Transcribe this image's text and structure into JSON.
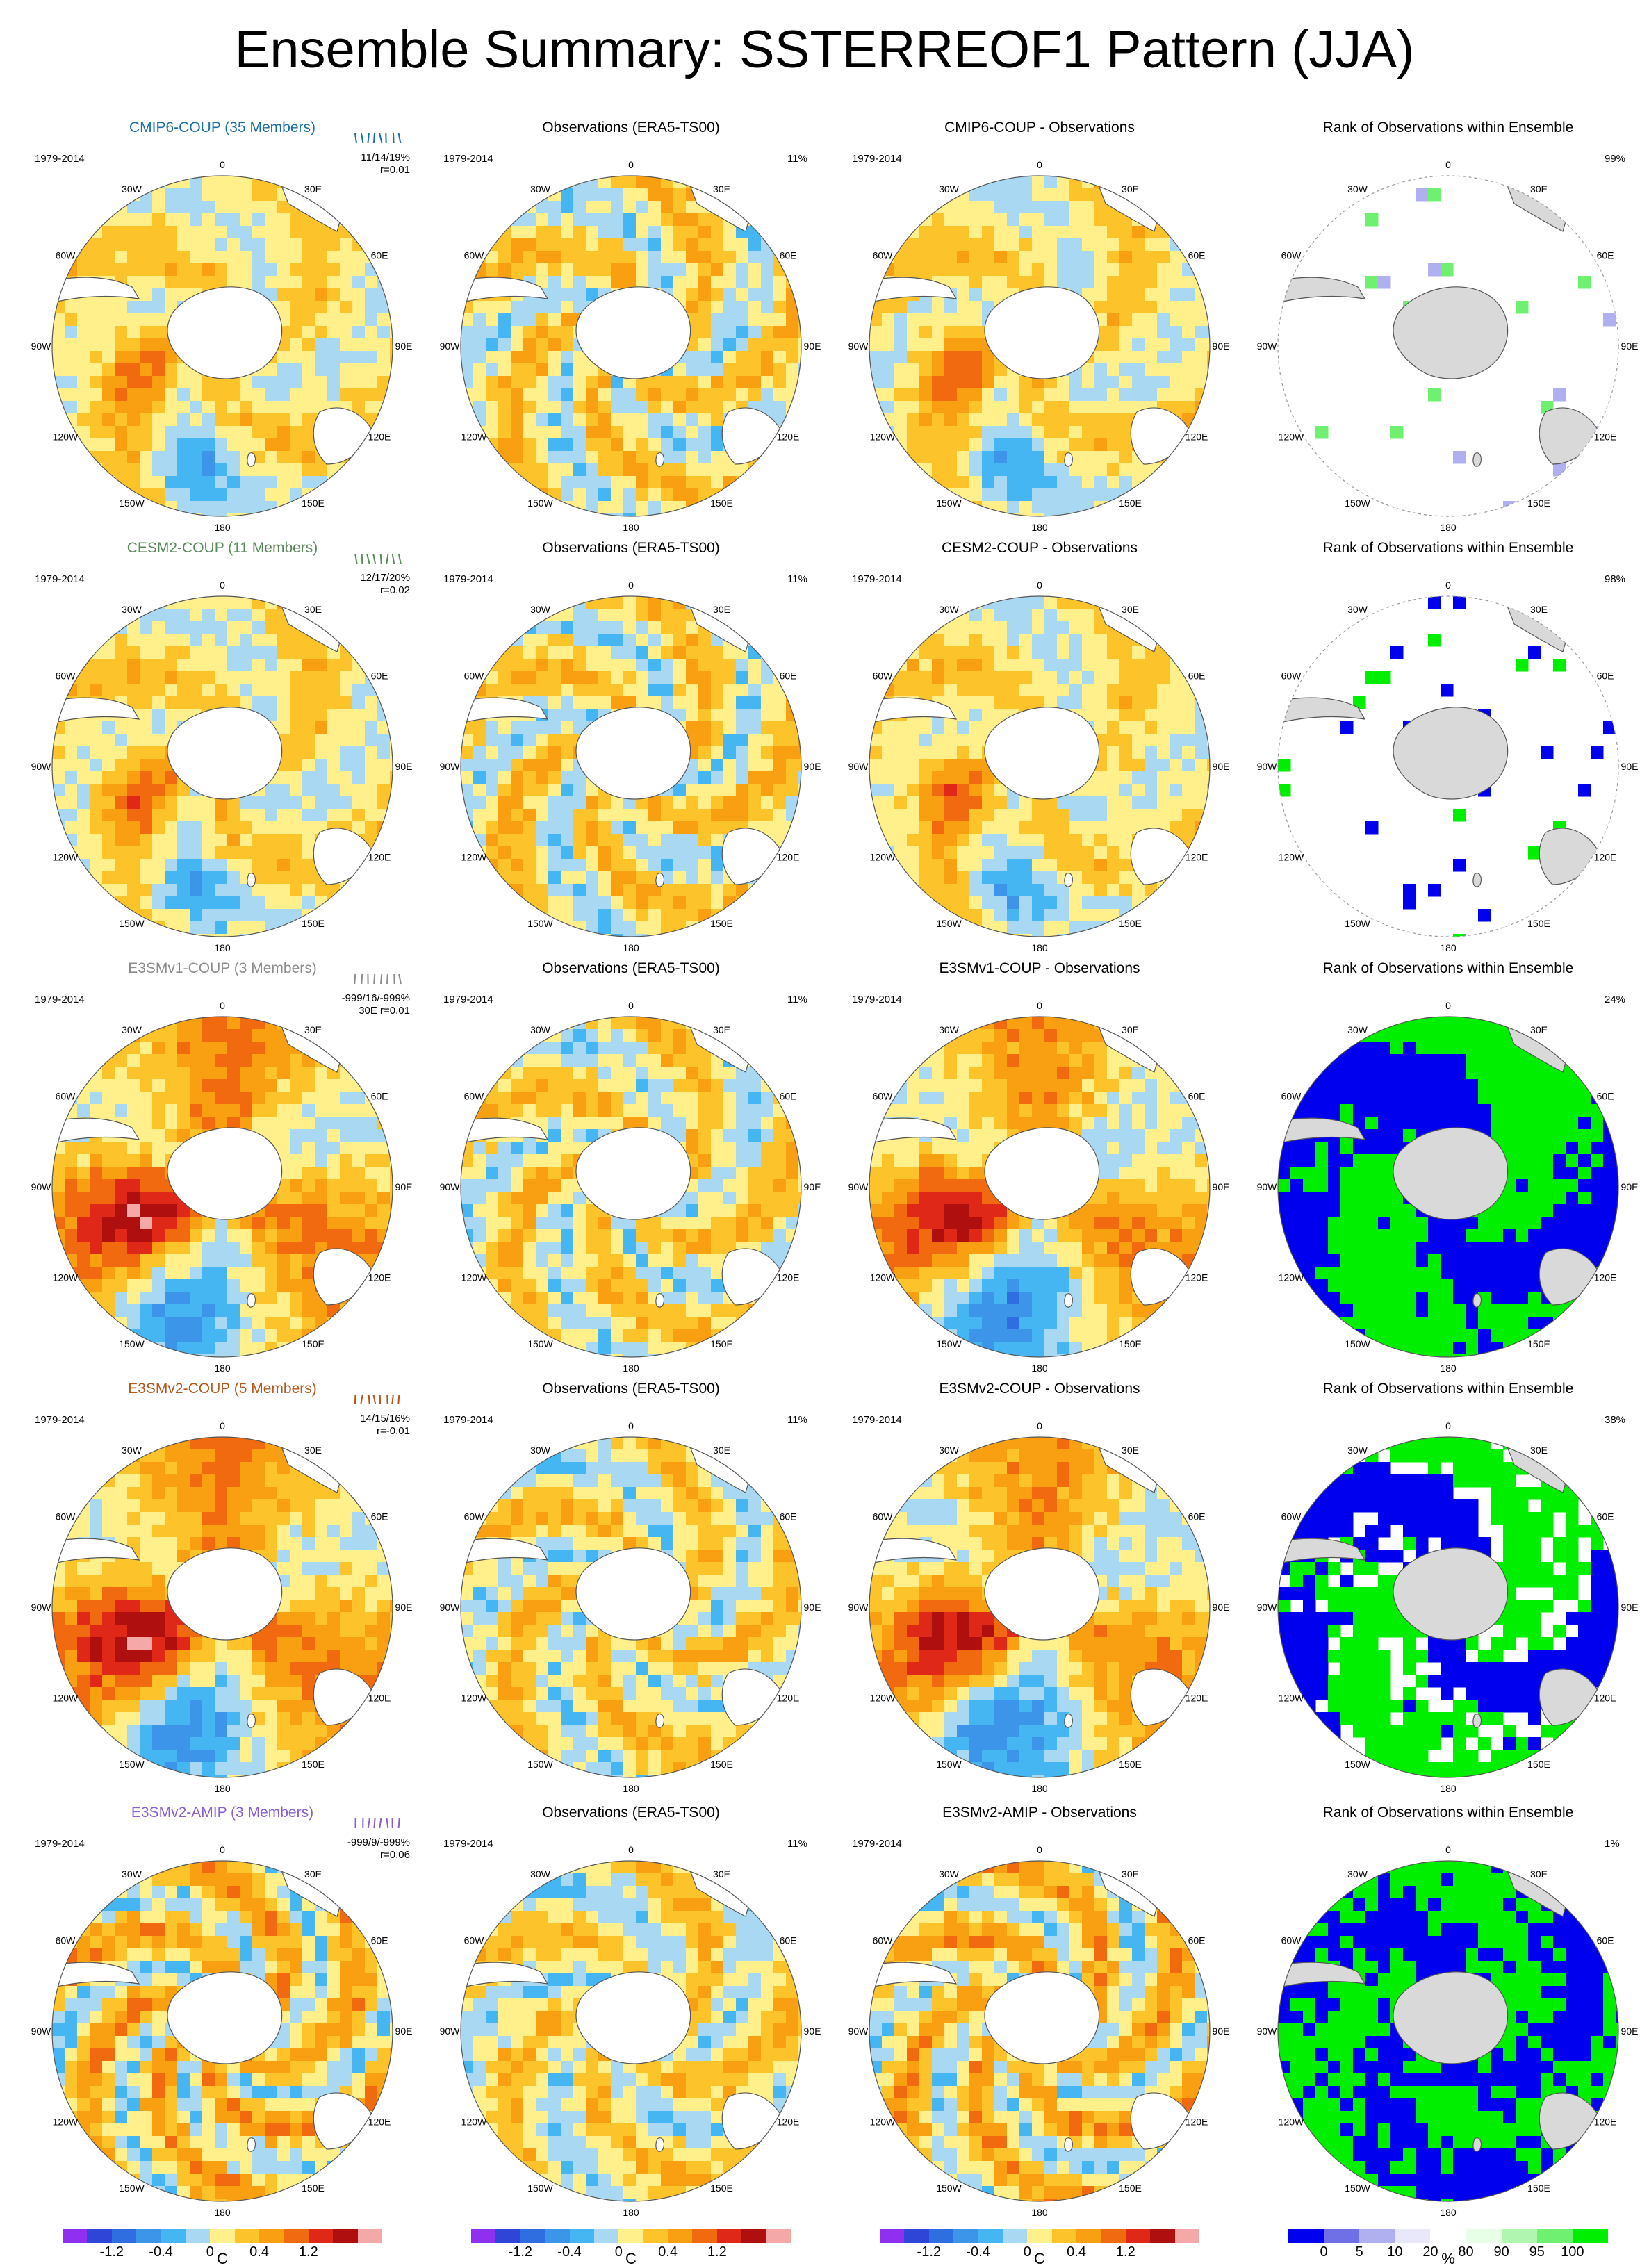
{
  "title": "Ensemble Summary: SSTERREOF1 Pattern (JJA)",
  "lon_labels": [
    "0",
    "30E",
    "60E",
    "90E",
    "120E",
    "150E",
    "180",
    "150W",
    "120W",
    "90W",
    "60W",
    "30W"
  ],
  "rows": [
    {
      "model": "CMIP6-COUP (35 Members)",
      "model_color": "#1a6fa3",
      "stats1": "11/14/19%",
      "stats2": "r=0.01",
      "obs_title": "Observations (ERA5-TS00)",
      "diff_title": "CMIP6-COUP - Observations",
      "rank_title": "Rank of Observations within Ensemble",
      "period": "1979-2014",
      "obs_pct": "11%",
      "rank_pct": "99%",
      "style": "cmip6"
    },
    {
      "model": "CESM2-COUP (11 Members)",
      "model_color": "#5a8a5a",
      "stats1": "12/17/20%",
      "stats2": "r=0.02",
      "obs_title": "Observations (ERA5-TS00)",
      "diff_title": "CESM2-COUP - Observations",
      "rank_title": "Rank of Observations within Ensemble",
      "period": "1979-2014",
      "obs_pct": "11%",
      "rank_pct": "98%",
      "style": "cesm2"
    },
    {
      "model": "E3SMv1-COUP (3 Members)",
      "model_color": "#8c8c8c",
      "stats1": "-999/16/-999%",
      "stats2": "30E r=0.01",
      "obs_title": "Observations (ERA5-TS00)",
      "diff_title": "E3SMv1-COUP - Observations",
      "rank_title": "Rank of Observations within Ensemble",
      "period": "1979-2014",
      "obs_pct": "11%",
      "rank_pct": "24%",
      "style": "e3smv1"
    },
    {
      "model": "E3SMv2-COUP (5 Members)",
      "model_color": "#b5561c",
      "stats1": "14/15/16%",
      "stats2": "r=-0.01",
      "obs_title": "Observations (ERA5-TS00)",
      "diff_title": "E3SMv2-COUP - Observations",
      "rank_title": "Rank of Observations within Ensemble",
      "period": "1979-2014",
      "obs_pct": "11%",
      "rank_pct": "38%",
      "style": "e3smv2"
    },
    {
      "model": "E3SMv2-AMIP (3 Members)",
      "model_color": "#8a5fd0",
      "stats1": "-999/9/-999%",
      "stats2": "r=0.06",
      "obs_title": "Observations (ERA5-TS00)",
      "diff_title": "E3SMv2-AMIP - Observations",
      "rank_title": "Rank of Observations within Ensemble",
      "period": "1979-2014",
      "obs_pct": "11%",
      "rank_pct": "1%",
      "style": "amip"
    }
  ],
  "colorbar_sst": {
    "unit": "C",
    "ticks": [
      "-1.2",
      "-0.4",
      "0",
      "0.4",
      "1.2"
    ],
    "colors": [
      "#8f2ff0",
      "#2f45d8",
      "#2f6ee0",
      "#3d95ea",
      "#45b6f2",
      "#a9d8f2",
      "#fff08c",
      "#fcc42a",
      "#f8a012",
      "#f26a10",
      "#e02818",
      "#b00f10",
      "#f5a8a8"
    ]
  },
  "colorbar_rank": {
    "unit": "%",
    "ticks": [
      "0",
      "5",
      "10",
      "20",
      "80",
      "90",
      "95",
      "100"
    ],
    "colors": [
      "#0000ee",
      "#7070e6",
      "#b0b0f0",
      "#e8e8fa",
      "#ffffff",
      "#e6ffe6",
      "#b0f5b0",
      "#70f070",
      "#00ee00"
    ]
  },
  "chart_data": {
    "type": "heatmap",
    "title": "Ensemble Summary: SSTERREOF1 Pattern (JJA)",
    "projection": "south polar stereographic",
    "season": "JJA",
    "period": "1979-2014",
    "sst_colorbar_unit": "C",
    "sst_colorbar_ticks": [
      -1.2,
      -0.4,
      0,
      0.4,
      1.2
    ],
    "rank_colorbar_unit": "%",
    "rank_colorbar_ticks": [
      0,
      5,
      10,
      20,
      80,
      90,
      95,
      100
    ],
    "panels": [
      {
        "row": "CMIP6-COUP (35 Members)",
        "stats": "11/14/19%",
        "r": 0.01,
        "obs_pct": 11,
        "rank_pct": 99
      },
      {
        "row": "CESM2-COUP (11 Members)",
        "stats": "12/17/20%",
        "r": 0.02,
        "obs_pct": 11,
        "rank_pct": 98
      },
      {
        "row": "E3SMv1-COUP (3 Members)",
        "stats": "-999/16/-999%",
        "r": 0.01,
        "obs_pct": 11,
        "rank_pct": 24
      },
      {
        "row": "E3SMv2-COUP (5 Members)",
        "stats": "14/15/16%",
        "r": -0.01,
        "obs_pct": 11,
        "rank_pct": 38
      },
      {
        "row": "E3SMv2-AMIP (3 Members)",
        "stats": "-999/9/-999%",
        "r": 0.06,
        "obs_pct": 11,
        "rank_pct": 1
      }
    ]
  }
}
